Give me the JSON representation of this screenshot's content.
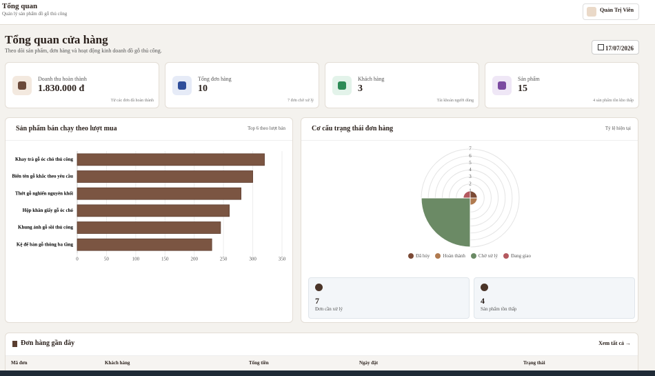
{
  "header": {
    "title": "Tổng quan",
    "subtitle": "Quản lý sản phẩm đồ gỗ thủ công",
    "user": "Quản Trị Viên"
  },
  "page": {
    "title": "Tổng quan cửa hàng",
    "subtitle": "Theo dõi sản phẩm, đơn hàng và hoạt động kinh doanh đồ gỗ thủ công.",
    "date": "17/07/2026"
  },
  "stats": [
    {
      "label": "Doanh thu hoàn thành",
      "value": "1.830.000 đ",
      "note": "Từ các đơn đã hoàn thành"
    },
    {
      "label": "Tổng đơn hàng",
      "value": "10",
      "note": "7 đơn chờ xử lý"
    },
    {
      "label": "Khách hàng",
      "value": "3",
      "note": "Tài khoản người dùng"
    },
    {
      "label": "Sản phẩm",
      "value": "15",
      "note": "4 sản phẩm tồn kho thấp"
    }
  ],
  "chart_data": [
    {
      "type": "hbar",
      "title": "Sản phẩm bán chạy theo lượt mua",
      "subtitle": "Top 6 theo lượt bán",
      "categories": [
        "Khay trà gỗ óc chó thủ công",
        "Biển tên gỗ khắc theo yêu cầu",
        "Thớt gỗ nghiến nguyên khối",
        "Hộp khăn giấy gỗ óc chó",
        "Khung ảnh gỗ sồi thủ công",
        "Kệ để bàn gỗ thông ba tầng"
      ],
      "values": [
        320,
        300,
        280,
        260,
        245,
        230
      ],
      "color": "#7b5542",
      "xlim": [
        0,
        350
      ],
      "xticks": [
        0,
        50,
        100,
        150,
        200,
        250,
        300,
        350
      ],
      "grid": true
    },
    {
      "type": "polar",
      "title": "Cơ cấu trạng thái đơn hàng",
      "subtitle": "Tỷ lệ hiện tại",
      "categories": [
        "Đã hủy",
        "Hoàn thành",
        "Chờ xử lý",
        "Đang giao"
      ],
      "values": [
        1,
        1,
        7,
        1
      ],
      "colors": [
        "#7b4a35",
        "#b07a4f",
        "#6b8a65",
        "#b4595f"
      ],
      "rlim": [
        0,
        7
      ],
      "rticks": [
        1,
        2,
        3,
        4,
        5,
        6,
        7
      ]
    }
  ],
  "mini_stats": [
    {
      "value": "7",
      "label": "Đơn cần xử lý"
    },
    {
      "value": "4",
      "label": "Sản phẩm tồn thấp"
    }
  ],
  "recent_orders": {
    "title": "Đơn hàng gần đây",
    "link": "Xem tất cả",
    "columns": [
      "Mã đơn",
      "Khách hàng",
      "Tổng tiền",
      "Ngày đặt",
      "Trạng thái"
    ]
  }
}
